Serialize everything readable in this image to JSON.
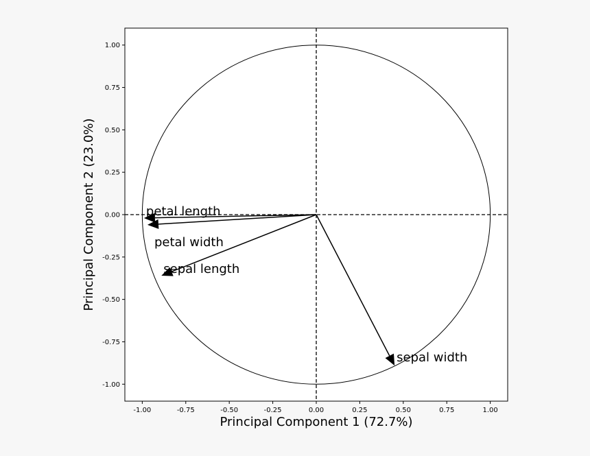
{
  "chart_data": {
    "type": "scatter",
    "subtype": "pca-correlation-circle",
    "xlabel": "Principal Component 1 (72.7%)",
    "ylabel": "Principal Component 2 (23.0%)",
    "xlim": [
      -1.1,
      1.1
    ],
    "ylim": [
      -1.1,
      1.1
    ],
    "xticks": [
      "-1.00",
      "-0.75",
      "-0.50",
      "-0.25",
      "0.00",
      "0.25",
      "0.50",
      "0.75",
      "1.00"
    ],
    "yticks": [
      "-1.00",
      "-0.75",
      "-0.50",
      "-0.25",
      "0.00",
      "0.25",
      "0.50",
      "0.75",
      "1.00"
    ],
    "grid": false,
    "circle_radius": 1.0,
    "vectors": [
      {
        "name": "petal length",
        "x": -0.99,
        "y": -0.02
      },
      {
        "name": "petal width",
        "x": -0.97,
        "y": -0.06
      },
      {
        "name": "sepal length",
        "x": -0.89,
        "y": -0.36
      },
      {
        "name": "sepal width",
        "x": 0.45,
        "y": -0.89
      }
    ]
  }
}
